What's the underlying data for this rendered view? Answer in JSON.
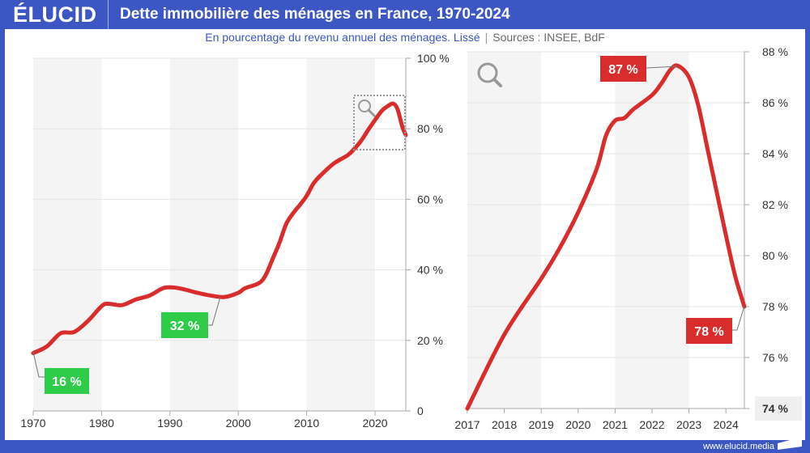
{
  "header": {
    "logo": "ÉLUCID",
    "title": "Dette immobilière des ménages en France, 1970-2024"
  },
  "subtitle": {
    "description": "En pourcentage du revenu annuel des ménages. Lissé",
    "separator": "|",
    "sources": "Sources : INSEE, BdF"
  },
  "footer": {
    "url": "www.elucid.media"
  },
  "colors": {
    "brand": "#3c56c4",
    "line": "#d92d2d",
    "label_green": "#2ecc48",
    "label_red": "#d92d2d",
    "band": "#f4f4f4"
  },
  "chart_data": [
    {
      "type": "line",
      "xlim": [
        1970,
        2024.5
      ],
      "ylim": [
        0,
        100
      ],
      "x_ticks": [
        1970,
        1980,
        1990,
        2000,
        2010,
        2020
      ],
      "x_tick_labels": [
        "1970",
        "1980",
        "1990",
        "2000",
        "2010",
        "2020"
      ],
      "y_ticks": [
        0,
        20,
        40,
        60,
        80,
        100
      ],
      "y_tick_labels": [
        "0",
        "20 %",
        "40 %",
        "60 %",
        "80 %",
        "100 %"
      ],
      "grid": true,
      "zoom_region_icon": "magnifier-icon",
      "x": [
        1970,
        1972,
        1974,
        1976,
        1978,
        1980,
        1981,
        1983,
        1985,
        1987,
        1989,
        1990.5,
        1992,
        1994,
        1996,
        1998,
        2000,
        2001,
        2003,
        2004,
        2005,
        2006,
        2007,
        2008,
        2009,
        2010,
        2011,
        2012,
        2014,
        2016,
        2017,
        2018,
        2019,
        2020,
        2021,
        2022,
        2022.7,
        2023.3,
        2024,
        2024.5
      ],
      "y": [
        16.4,
        18.3,
        22,
        22.4,
        25.5,
        29.7,
        30.4,
        30,
        31.6,
        32.7,
        34.8,
        35,
        34.5,
        33.5,
        32.7,
        32.3,
        33.5,
        34.8,
        36.2,
        38.5,
        43,
        47.6,
        53,
        56,
        58.4,
        61,
        64.5,
        66.7,
        70.2,
        72.5,
        74.4,
        76.7,
        79.7,
        82.5,
        85.1,
        86.6,
        87.1,
        85.5,
        80.5,
        78.2
      ],
      "annotations": [
        {
          "x": 1970,
          "y": 16.4,
          "text": "16 %"
        },
        {
          "x": 1997,
          "y": 32.3,
          "text": "32 %"
        }
      ]
    },
    {
      "type": "line",
      "xlim": [
        2017,
        2024.5
      ],
      "ylim": [
        74,
        88
      ],
      "x_ticks": [
        2017,
        2018,
        2019,
        2020,
        2021,
        2022,
        2023,
        2024
      ],
      "x_tick_labels": [
        "2017",
        "2018",
        "2019",
        "2020",
        "2021",
        "2022",
        "2023",
        "2024"
      ],
      "y_ticks": [
        74,
        76,
        78,
        80,
        82,
        84,
        86,
        88
      ],
      "y_tick_labels": [
        "74 %",
        "76 %",
        "78 %",
        "80 %",
        "82 %",
        "84 %",
        "86 %",
        "88 %"
      ],
      "grid": true,
      "icon": "magnifier-icon",
      "x": [
        2017,
        2018,
        2019,
        2019.5,
        2020,
        2020.5,
        2020.75,
        2021,
        2021.25,
        2021.5,
        2022,
        2022.25,
        2022.5,
        2022.7,
        2023,
        2023.25,
        2023.5,
        2023.75,
        2024,
        2024.25,
        2024.5
      ],
      "y": [
        74,
        76.9,
        79.1,
        80.3,
        81.7,
        83.4,
        84.7,
        85.3,
        85.4,
        85.75,
        86.3,
        86.75,
        87.3,
        87.45,
        87,
        85.9,
        84.2,
        82.5,
        80.8,
        79.2,
        78
      ],
      "annotations": [
        {
          "x": 2022.7,
          "y": 87.45,
          "text": "87 %"
        },
        {
          "x": 2024.5,
          "y": 78,
          "text": "78 %"
        }
      ]
    }
  ]
}
